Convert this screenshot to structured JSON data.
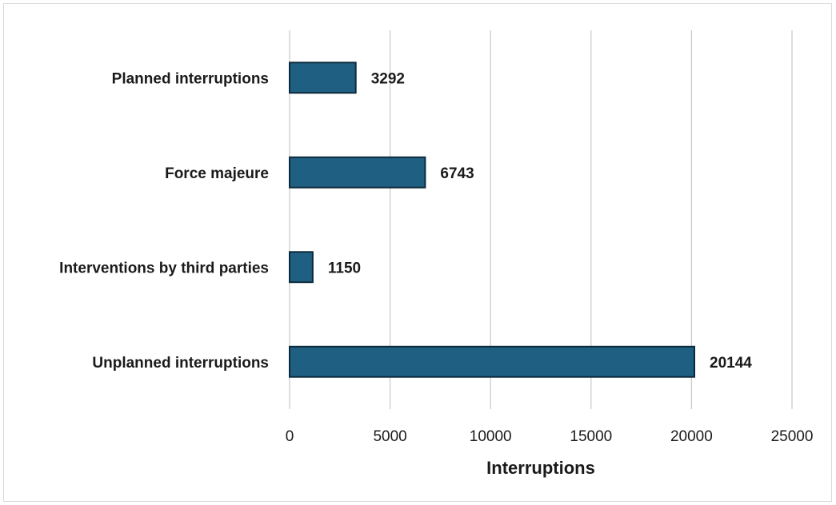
{
  "chart_data": {
    "type": "bar",
    "orientation": "horizontal",
    "categories": [
      "Planned interruptions",
      "Force majeure",
      "Interventions by third parties",
      "Unplanned interruptions"
    ],
    "values": [
      3292,
      6743,
      1150,
      20144
    ],
    "xlabel": "Interruptions",
    "ylabel": "",
    "xlim": [
      0,
      25000
    ],
    "xticks": [
      0,
      5000,
      10000,
      15000,
      20000,
      25000
    ],
    "grid": "vertical",
    "data_labels": true,
    "legend": "none",
    "colors": {
      "bar_fill": "#1f5f82",
      "bar_edge": "#0d2a3c",
      "grid": "#c8c8c8"
    }
  }
}
